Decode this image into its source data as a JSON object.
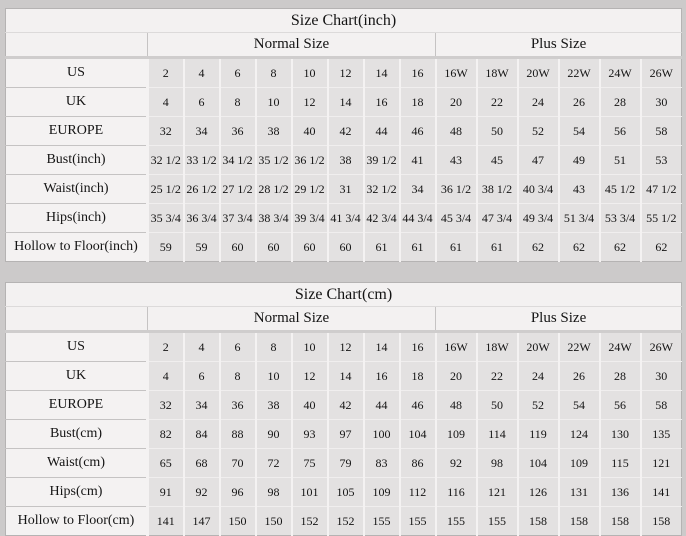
{
  "colors": {
    "page_background": "#cccaca",
    "cell_background": "#e3e1e1",
    "header_background": "#f3f1f1",
    "grid_light": "#f4f2f2",
    "grid_dark": "#c5c3c3",
    "text": "#141414"
  },
  "chart_data": [
    {
      "type": "table",
      "title": "Size Chart(inch)",
      "column_groups": [
        {
          "label": "",
          "span": 1
        },
        {
          "label": "Normal Size",
          "span": 8
        },
        {
          "label": "Plus Size",
          "span": 6
        }
      ],
      "rows": [
        {
          "label": "US",
          "values": [
            "2",
            "4",
            "6",
            "8",
            "10",
            "12",
            "14",
            "16",
            "16W",
            "18W",
            "20W",
            "22W",
            "24W",
            "26W"
          ]
        },
        {
          "label": "UK",
          "values": [
            "4",
            "6",
            "8",
            "10",
            "12",
            "14",
            "16",
            "18",
            "20",
            "22",
            "24",
            "26",
            "28",
            "30"
          ]
        },
        {
          "label": "EUROPE",
          "values": [
            "32",
            "34",
            "36",
            "38",
            "40",
            "42",
            "44",
            "46",
            "48",
            "50",
            "52",
            "54",
            "56",
            "58"
          ]
        },
        {
          "label": "Bust(inch)",
          "values": [
            "32 1/2",
            "33 1/2",
            "34 1/2",
            "35 1/2",
            "36 1/2",
            "38",
            "39 1/2",
            "41",
            "43",
            "45",
            "47",
            "49",
            "51",
            "53"
          ]
        },
        {
          "label": "Waist(inch)",
          "values": [
            "25 1/2",
            "26 1/2",
            "27 1/2",
            "28 1/2",
            "29 1/2",
            "31",
            "32 1/2",
            "34",
            "36 1/2",
            "38 1/2",
            "40 3/4",
            "43",
            "45 1/2",
            "47 1/2"
          ]
        },
        {
          "label": "Hips(inch)",
          "values": [
            "35 3/4",
            "36 3/4",
            "37 3/4",
            "38 3/4",
            "39 3/4",
            "41 3/4",
            "42 3/4",
            "44 3/4",
            "45 3/4",
            "47 3/4",
            "49 3/4",
            "51 3/4",
            "53 3/4",
            "55 1/2"
          ]
        },
        {
          "label": "Hollow to Floor(inch)",
          "values": [
            "59",
            "59",
            "60",
            "60",
            "60",
            "60",
            "61",
            "61",
            "61",
            "61",
            "62",
            "62",
            "62",
            "62"
          ]
        }
      ]
    },
    {
      "type": "table",
      "title": "Size Chart(cm)",
      "column_groups": [
        {
          "label": "",
          "span": 1
        },
        {
          "label": "Normal Size",
          "span": 8
        },
        {
          "label": "Plus Size",
          "span": 6
        }
      ],
      "rows": [
        {
          "label": "US",
          "values": [
            "2",
            "4",
            "6",
            "8",
            "10",
            "12",
            "14",
            "16",
            "16W",
            "18W",
            "20W",
            "22W",
            "24W",
            "26W"
          ]
        },
        {
          "label": "UK",
          "values": [
            "4",
            "6",
            "8",
            "10",
            "12",
            "14",
            "16",
            "18",
            "20",
            "22",
            "24",
            "26",
            "28",
            "30"
          ]
        },
        {
          "label": "EUROPE",
          "values": [
            "32",
            "34",
            "36",
            "38",
            "40",
            "42",
            "44",
            "46",
            "48",
            "50",
            "52",
            "54",
            "56",
            "58"
          ]
        },
        {
          "label": "Bust(cm)",
          "values": [
            "82",
            "84",
            "88",
            "90",
            "93",
            "97",
            "100",
            "104",
            "109",
            "114",
            "119",
            "124",
            "130",
            "135"
          ]
        },
        {
          "label": "Waist(cm)",
          "values": [
            "65",
            "68",
            "70",
            "72",
            "75",
            "79",
            "83",
            "86",
            "92",
            "98",
            "104",
            "109",
            "115",
            "121"
          ]
        },
        {
          "label": "Hips(cm)",
          "values": [
            "91",
            "92",
            "96",
            "98",
            "101",
            "105",
            "109",
            "112",
            "116",
            "121",
            "126",
            "131",
            "136",
            "141"
          ]
        },
        {
          "label": "Hollow to Floor(cm)",
          "values": [
            "141",
            "147",
            "150",
            "150",
            "152",
            "152",
            "155",
            "155",
            "155",
            "155",
            "158",
            "158",
            "158",
            "158"
          ]
        }
      ]
    }
  ]
}
